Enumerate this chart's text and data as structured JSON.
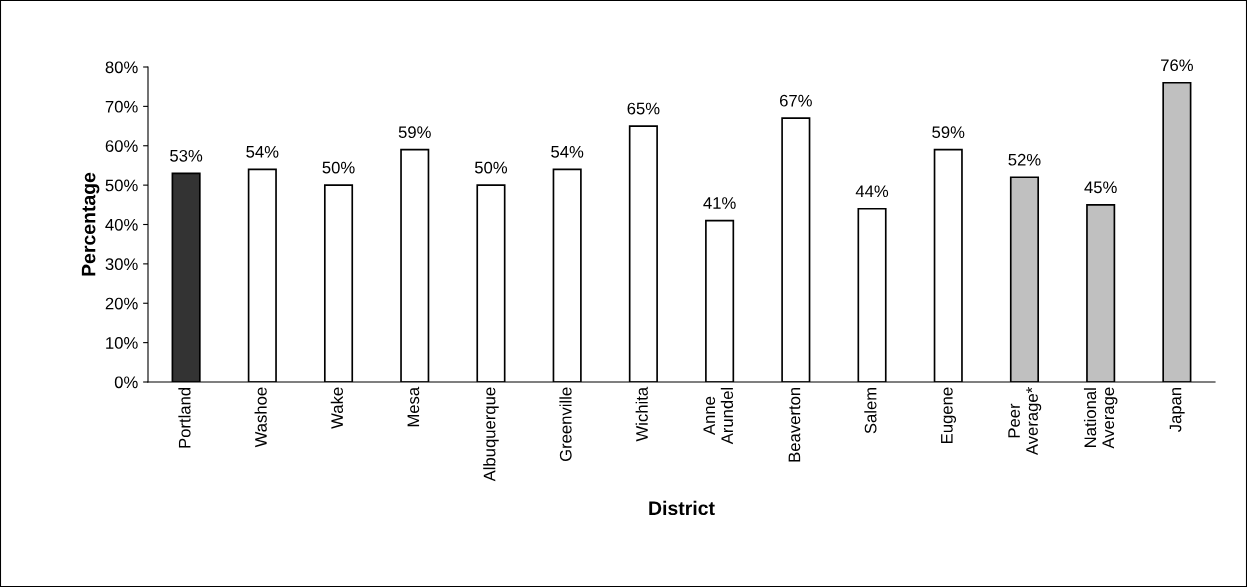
{
  "chart_data": {
    "type": "bar",
    "categories": [
      "Portland",
      "Washoe",
      "Wake",
      "Mesa",
      "Albuquerque",
      "Greenville",
      "Wichita",
      "Anne\nArundel",
      "Beaverton",
      "Salem",
      "Eugene",
      "Peer\nAverage*",
      "National\nAverage",
      "Japan"
    ],
    "values": [
      53,
      54,
      50,
      59,
      50,
      54,
      65,
      41,
      67,
      44,
      59,
      52,
      45,
      76
    ],
    "colors": [
      "#333333",
      "#ffffff",
      "#ffffff",
      "#ffffff",
      "#ffffff",
      "#ffffff",
      "#ffffff",
      "#ffffff",
      "#ffffff",
      "#ffffff",
      "#ffffff",
      "#c0c0c0",
      "#c0c0c0",
      "#c0c0c0"
    ],
    "value_labels": [
      "53%",
      "54%",
      "50%",
      "59%",
      "50%",
      "54%",
      "65%",
      "41%",
      "67%",
      "44%",
      "59%",
      "52%",
      "45%",
      "76%"
    ],
    "xlabel": "District",
    "ylabel": "Percentage",
    "ylim": [
      0,
      80
    ],
    "yticks": [
      {
        "value": 0,
        "label": "0%"
      },
      {
        "value": 10,
        "label": "10%"
      },
      {
        "value": 20,
        "label": "20%"
      },
      {
        "value": 30,
        "label": "30%"
      },
      {
        "value": 40,
        "label": "40%"
      },
      {
        "value": 50,
        "label": "50%"
      },
      {
        "value": 60,
        "label": "60%"
      },
      {
        "value": 70,
        "label": "70%"
      },
      {
        "value": 80,
        "label": "80%"
      }
    ],
    "grid": false,
    "legend": false
  }
}
